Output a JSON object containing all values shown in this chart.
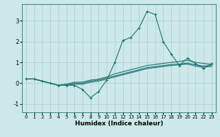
{
  "xlabel": "Humidex (Indice chaleur)",
  "ylabel": "",
  "background_color": "#cce8e8",
  "grid_color": "#aacccc",
  "line_color": "#1a7070",
  "xlim": [
    -0.5,
    23.5
  ],
  "ylim": [
    -1.4,
    3.8
  ],
  "xticks": [
    0,
    1,
    2,
    3,
    4,
    5,
    6,
    7,
    8,
    9,
    10,
    11,
    12,
    13,
    14,
    15,
    16,
    17,
    18,
    19,
    20,
    21,
    22,
    23
  ],
  "yticks": [
    -1,
    0,
    1,
    2,
    3
  ],
  "series": [
    [
      0.2,
      0.2,
      0.1,
      0.0,
      -0.1,
      -0.1,
      -0.1,
      -0.3,
      -0.7,
      -0.4,
      0.15,
      1.0,
      2.05,
      2.2,
      2.65,
      3.45,
      3.3,
      2.0,
      1.4,
      0.85,
      1.2,
      0.95,
      0.7,
      0.95
    ],
    [
      0.2,
      0.2,
      0.1,
      0.0,
      -0.1,
      -0.05,
      0.05,
      0.05,
      0.15,
      0.2,
      0.3,
      0.45,
      0.55,
      0.65,
      0.75,
      0.85,
      0.9,
      0.95,
      1.0,
      1.05,
      1.1,
      1.0,
      0.95,
      0.9
    ],
    [
      0.2,
      0.2,
      0.1,
      0.0,
      -0.1,
      -0.05,
      0.0,
      0.0,
      0.1,
      0.15,
      0.25,
      0.35,
      0.45,
      0.55,
      0.65,
      0.75,
      0.8,
      0.85,
      0.9,
      0.92,
      0.97,
      0.88,
      0.83,
      0.85
    ],
    [
      0.2,
      0.2,
      0.1,
      0.0,
      -0.1,
      -0.1,
      -0.05,
      -0.05,
      0.05,
      0.1,
      0.2,
      0.3,
      0.4,
      0.5,
      0.6,
      0.7,
      0.75,
      0.8,
      0.85,
      0.88,
      0.92,
      0.82,
      0.78,
      0.8
    ]
  ],
  "xlabel_fontsize": 6.5,
  "xlabel_fontweight": "bold",
  "xtick_fontsize": 5.0,
  "ytick_fontsize": 6.0
}
